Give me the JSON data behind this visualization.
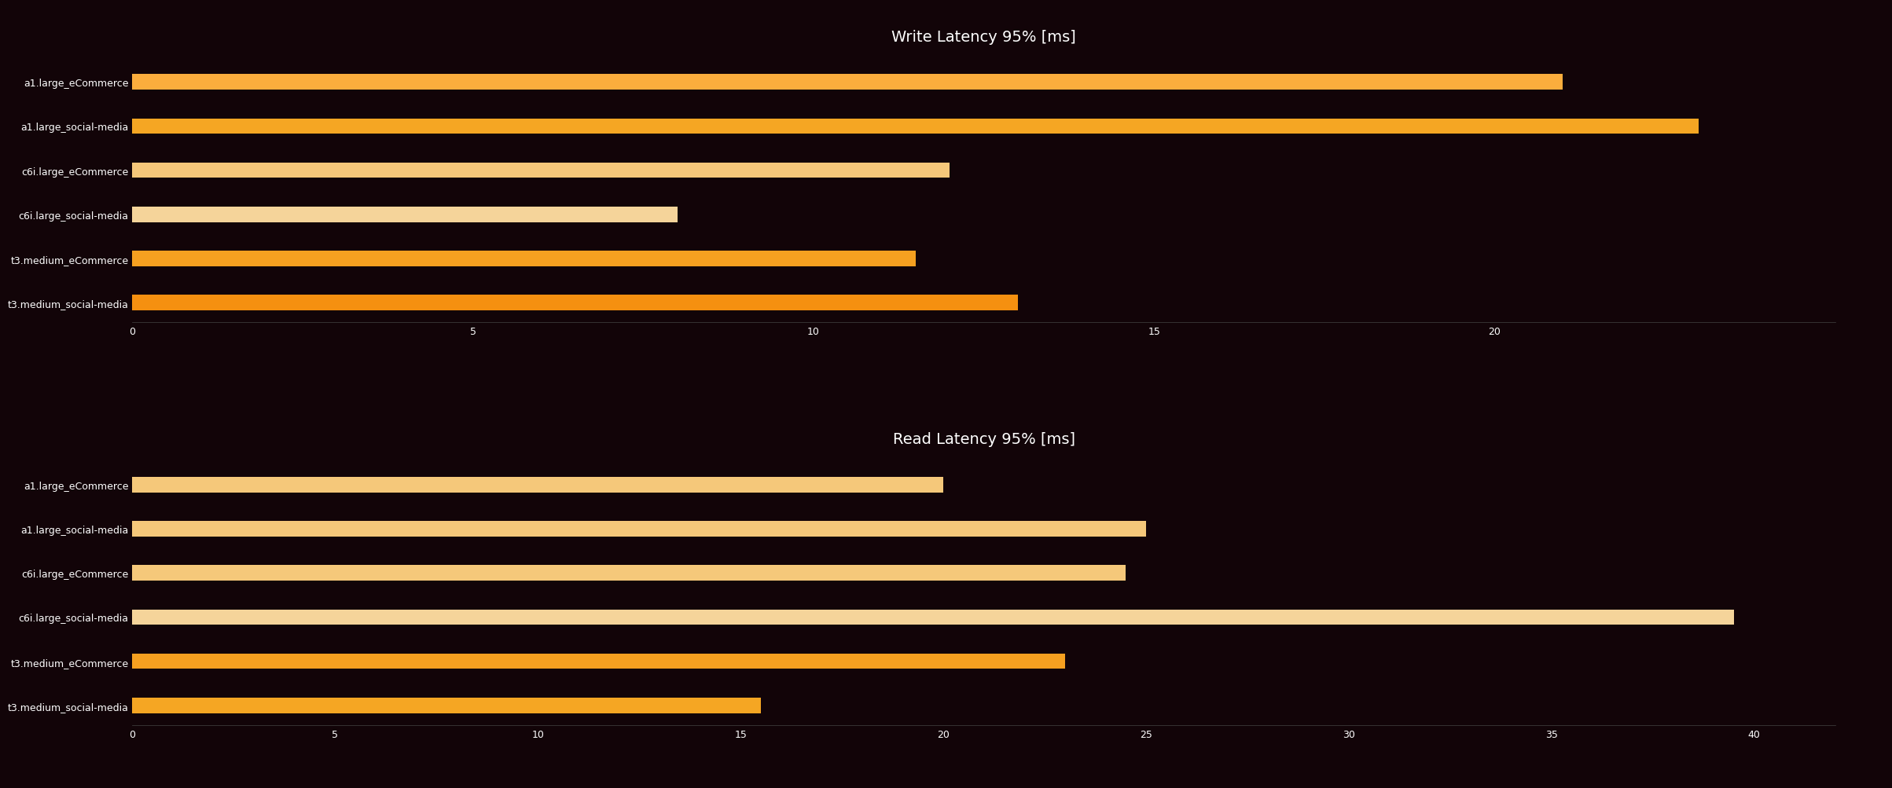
{
  "write_title": "Write Latency 95% [ms]",
  "read_title": "Read Latency 95% [ms]",
  "categories": [
    "a1.large_eCommerce",
    "a1.large_social-media",
    "c6i.large_eCommerce",
    "c6i.large_social-media",
    "t3.medium_eCommerce",
    "t3.medium_social-media"
  ],
  "write_values": [
    21.0,
    23.0,
    12.0,
    8.0,
    11.5,
    13.0
  ],
  "read_values": [
    20.0,
    25.0,
    24.5,
    39.5,
    23.0,
    15.5
  ],
  "write_xlim": [
    0,
    25
  ],
  "read_xlim": [
    0,
    42
  ],
  "write_xticks": [
    0,
    5,
    10,
    15,
    20
  ],
  "read_xticks": [
    0,
    5,
    10,
    15,
    20,
    25,
    30,
    35,
    40
  ],
  "write_bar_colors": [
    "#FBAD3D",
    "#F5A623",
    "#F5C87A",
    "#F5D49A",
    "#F5A020",
    "#F59010"
  ],
  "read_bar_colors": [
    "#F5C87A",
    "#F5C87A",
    "#F5C87A",
    "#F5D49A",
    "#F5A020",
    "#F5A623"
  ],
  "background_color": "#120408",
  "text_color": "#ffffff",
  "title_fontsize": 14,
  "label_fontsize": 9,
  "tick_fontsize": 9,
  "bar_height": 0.35
}
